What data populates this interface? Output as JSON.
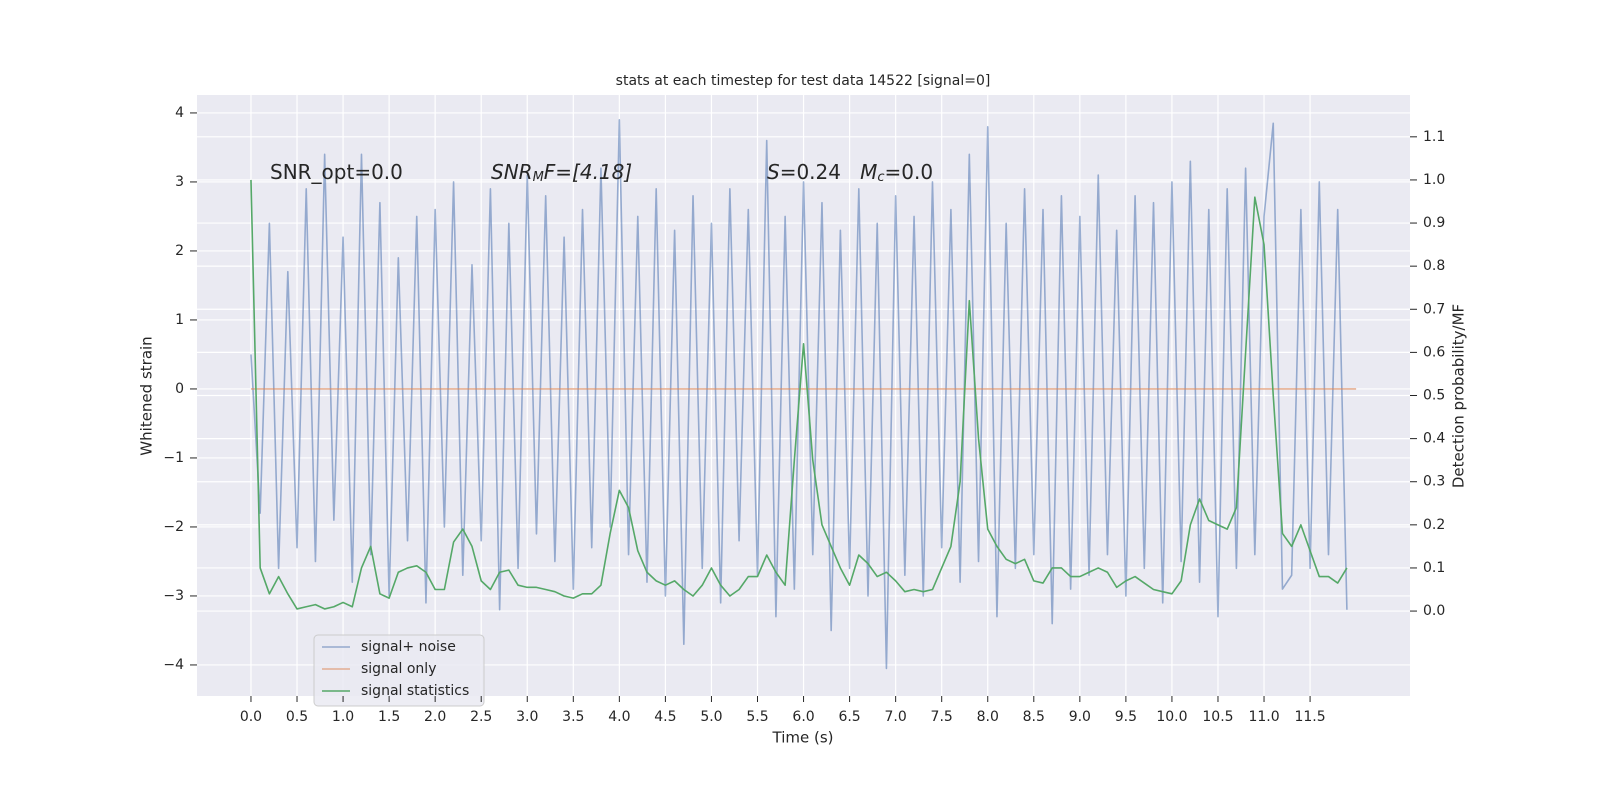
{
  "chart_data": {
    "type": "line",
    "title": "stats at each timestep for test data 14522 [signal=0]",
    "xlabel": "Time (s)",
    "ylabel": "Whitened strain",
    "y2label": "Detection probability/MF",
    "annotations": [
      {
        "parts": [
          "SNR_opt=0.0"
        ]
      },
      {
        "parts": [
          "SNR",
          "M",
          "F=[4.18]"
        ]
      },
      {
        "parts": [
          "S",
          "=0.24   ",
          "M",
          "c",
          "=0.0"
        ]
      }
    ],
    "xlim": [
      -0.586,
      12.585
    ],
    "ylim": [
      -4.45,
      4.26
    ],
    "y2lim": [
      -0.197,
      1.197
    ],
    "xticks": [
      {
        "value": 0,
        "label": "0.0"
      },
      {
        "value": 0.5,
        "label": "0.5"
      },
      {
        "value": 1,
        "label": "1.0"
      },
      {
        "value": 1.5,
        "label": "1.5"
      },
      {
        "value": 2,
        "label": "2.0"
      },
      {
        "value": 2.5,
        "label": "2.5"
      },
      {
        "value": 3,
        "label": "3.0"
      },
      {
        "value": 3.5,
        "label": "3.5"
      },
      {
        "value": 4,
        "label": "4.0"
      },
      {
        "value": 4.5,
        "label": "4.5"
      },
      {
        "value": 5,
        "label": "5.0"
      },
      {
        "value": 5.5,
        "label": "5.5"
      },
      {
        "value": 6,
        "label": "6.0"
      },
      {
        "value": 6.5,
        "label": "6.5"
      },
      {
        "value": 7,
        "label": "7.0"
      },
      {
        "value": 7.5,
        "label": "7.5"
      },
      {
        "value": 8,
        "label": "8.0"
      },
      {
        "value": 8.5,
        "label": "8.5"
      },
      {
        "value": 9,
        "label": "9.0"
      },
      {
        "value": 9.5,
        "label": "9.5"
      },
      {
        "value": 10,
        "label": "10.0"
      },
      {
        "value": 10.5,
        "label": "10.5"
      },
      {
        "value": 11,
        "label": "11.0"
      },
      {
        "value": 11.5,
        "label": "11.5"
      }
    ],
    "yticks": [
      {
        "value": -4,
        "label": "−4"
      },
      {
        "value": -3,
        "label": "−3"
      },
      {
        "value": -2,
        "label": "−2"
      },
      {
        "value": -1,
        "label": "−1"
      },
      0,
      1,
      2,
      3,
      4
    ],
    "y2ticks": [
      {
        "value": 0,
        "label": "0.0"
      },
      {
        "value": 0.1,
        "label": "0.1"
      },
      {
        "value": 0.2,
        "label": "0.2"
      },
      {
        "value": 0.3,
        "label": "0.3"
      },
      {
        "value": 0.4,
        "label": "0.4"
      },
      {
        "value": 0.5,
        "label": "0.5"
      },
      {
        "value": 0.6,
        "label": "0.6"
      },
      {
        "value": 0.7,
        "label": "0.7"
      },
      {
        "value": 0.8,
        "label": "0.8"
      },
      {
        "value": 0.9,
        "label": "0.9"
      },
      {
        "value": 1.0,
        "label": "1.0"
      },
      {
        "value": 1.1,
        "label": "1.1"
      }
    ],
    "grid": true,
    "legend": "lower left",
    "series": [
      {
        "name": "signal+ noise",
        "color": "#4c72b0",
        "opacity": 0.55,
        "x": [
          0,
          0.1,
          0.2,
          0.3,
          0.4,
          0.5,
          0.6,
          0.7,
          0.8,
          0.9,
          1,
          1.1,
          1.2,
          1.3,
          1.4,
          1.5,
          1.6,
          1.7,
          1.8,
          1.9,
          2,
          2.1,
          2.2,
          2.3,
          2.4,
          2.5,
          2.6,
          2.7,
          2.8,
          2.9,
          3,
          3.1,
          3.2,
          3.3,
          3.4,
          3.5,
          3.6,
          3.7,
          3.8,
          3.9,
          4,
          4.1,
          4.2,
          4.3,
          4.4,
          4.5,
          4.6,
          4.7,
          4.8,
          4.9,
          5,
          5.1,
          5.2,
          5.3,
          5.4,
          5.5,
          5.6,
          5.7,
          5.8,
          5.9,
          6,
          6.1,
          6.2,
          6.3,
          6.4,
          6.5,
          6.6,
          6.7,
          6.8,
          6.9,
          7,
          7.1,
          7.2,
          7.3,
          7.4,
          7.5,
          7.6,
          7.7,
          7.8,
          7.9,
          8,
          8.1,
          8.2,
          8.3,
          8.4,
          8.5,
          8.6,
          8.7,
          8.8,
          8.9,
          9,
          9.1,
          9.2,
          9.3,
          9.4,
          9.5,
          9.6,
          9.7,
          9.8,
          9.9,
          10,
          10.1,
          10.2,
          10.3,
          10.4,
          10.5,
          10.6,
          10.7,
          10.8,
          10.9,
          11,
          11.1,
          11.2,
          11.3,
          11.4,
          11.5,
          11.6,
          11.7,
          11.8,
          11.9
        ],
        "values": [
          0.5,
          -1.8,
          2.4,
          -2.6,
          1.7,
          -2.3,
          2.9,
          -2.5,
          3.4,
          -1.9,
          2.2,
          -2.8,
          3.4,
          -2.4,
          2.7,
          -3.0,
          1.9,
          -2.2,
          2.5,
          -3.1,
          2.6,
          -2.0,
          3.0,
          -2.7,
          1.8,
          -2.2,
          2.9,
          -3.2,
          2.4,
          -2.6,
          3.1,
          -2.1,
          2.8,
          -2.5,
          2.2,
          -2.9,
          2.6,
          -2.3,
          3.2,
          -2.0,
          3.9,
          -2.4,
          2.5,
          -2.8,
          2.9,
          -3.0,
          2.3,
          -3.7,
          2.8,
          -2.6,
          2.4,
          -3.1,
          2.9,
          -2.2,
          2.6,
          -2.7,
          3.6,
          -3.3,
          2.5,
          -2.9,
          3.0,
          -2.4,
          2.7,
          -3.5,
          2.3,
          -2.6,
          2.9,
          -3.0,
          2.4,
          -4.05,
          2.8,
          -2.7,
          2.5,
          -3.0,
          3.0,
          -2.3,
          2.6,
          -2.8,
          3.4,
          -2.5,
          3.8,
          -3.3,
          2.4,
          -2.6,
          2.9,
          -2.4,
          2.6,
          -3.4,
          2.8,
          -2.9,
          2.5,
          -2.7,
          3.1,
          -2.4,
          2.3,
          -3.0,
          2.8,
          -2.6,
          2.7,
          -3.1,
          3.0,
          -2.5,
          3.3,
          -2.8,
          2.6,
          -3.3,
          2.9,
          -2.6,
          3.2,
          -2.4,
          2.5,
          3.85,
          -2.9,
          -2.7,
          2.6,
          -2.6,
          3.0,
          -2.4,
          2.6,
          -3.2
        ]
      },
      {
        "name": "signal only",
        "color": "#dd8452",
        "opacity": 0.6,
        "x": [
          0,
          12
        ],
        "values": [
          0,
          0
        ]
      },
      {
        "name": "signal statistics",
        "color": "#55a868",
        "opacity": 1,
        "axis": "y2",
        "x": [
          0,
          0.1,
          0.2,
          0.3,
          0.4,
          0.5,
          0.6,
          0.7,
          0.8,
          0.9,
          1,
          1.1,
          1.2,
          1.3,
          1.4,
          1.5,
          1.6,
          1.7,
          1.8,
          1.9,
          2,
          2.1,
          2.2,
          2.3,
          2.4,
          2.5,
          2.6,
          2.7,
          2.8,
          2.9,
          3,
          3.1,
          3.2,
          3.3,
          3.4,
          3.5,
          3.6,
          3.7,
          3.8,
          3.9,
          4,
          4.1,
          4.2,
          4.3,
          4.4,
          4.5,
          4.6,
          4.7,
          4.8,
          4.9,
          5,
          5.1,
          5.2,
          5.3,
          5.4,
          5.5,
          5.6,
          5.7,
          5.8,
          5.9,
          6,
          6.1,
          6.2,
          6.3,
          6.4,
          6.5,
          6.6,
          6.7,
          6.8,
          6.9,
          7,
          7.1,
          7.2,
          7.3,
          7.4,
          7.5,
          7.6,
          7.7,
          7.8,
          7.9,
          8,
          8.1,
          8.2,
          8.3,
          8.4,
          8.5,
          8.6,
          8.7,
          8.8,
          8.9,
          9,
          9.1,
          9.2,
          9.3,
          9.4,
          9.5,
          9.6,
          9.7,
          9.8,
          9.9,
          10,
          10.1,
          10.2,
          10.3,
          10.4,
          10.5,
          10.6,
          10.7,
          10.8,
          10.9,
          11,
          11.1,
          11.2,
          11.3,
          11.4,
          11.5,
          11.6,
          11.7,
          11.8,
          11.9
        ],
        "values": [
          1.0,
          0.1,
          0.04,
          0.08,
          0.04,
          0.005,
          0.01,
          0.015,
          0.005,
          0.01,
          0.02,
          0.01,
          0.1,
          0.15,
          0.04,
          0.03,
          0.09,
          0.1,
          0.105,
          0.09,
          0.05,
          0.05,
          0.16,
          0.19,
          0.15,
          0.07,
          0.05,
          0.09,
          0.095,
          0.06,
          0.055,
          0.055,
          0.05,
          0.045,
          0.035,
          0.03,
          0.04,
          0.04,
          0.06,
          0.18,
          0.28,
          0.24,
          0.14,
          0.09,
          0.07,
          0.06,
          0.07,
          0.05,
          0.035,
          0.06,
          0.1,
          0.06,
          0.035,
          0.05,
          0.08,
          0.08,
          0.13,
          0.09,
          0.06,
          0.35,
          0.62,
          0.35,
          0.2,
          0.15,
          0.1,
          0.06,
          0.13,
          0.11,
          0.08,
          0.09,
          0.07,
          0.045,
          0.05,
          0.045,
          0.05,
          0.1,
          0.15,
          0.3,
          0.72,
          0.4,
          0.19,
          0.15,
          0.12,
          0.11,
          0.12,
          0.07,
          0.065,
          0.1,
          0.1,
          0.08,
          0.08,
          0.09,
          0.1,
          0.09,
          0.055,
          0.07,
          0.08,
          0.065,
          0.05,
          0.045,
          0.04,
          0.07,
          0.2,
          0.26,
          0.21,
          0.2,
          0.19,
          0.24,
          0.6,
          0.96,
          0.85,
          0.5,
          0.18,
          0.15,
          0.2,
          0.14,
          0.08,
          0.08,
          0.065,
          0.1
        ]
      }
    ]
  }
}
